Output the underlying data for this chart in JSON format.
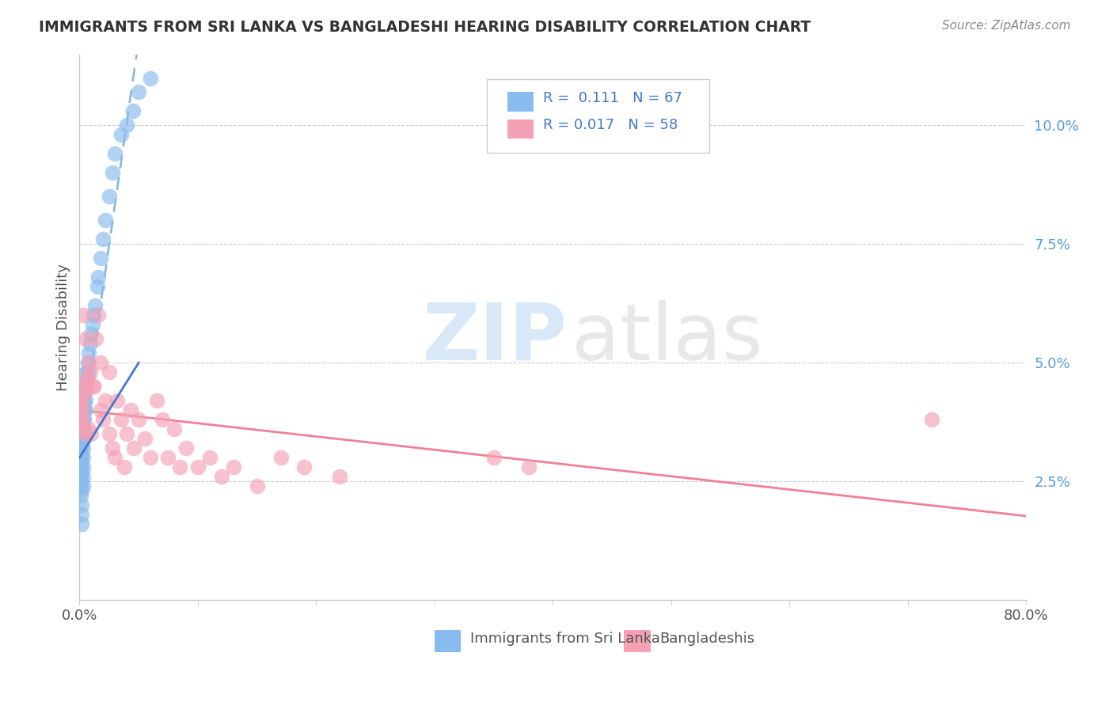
{
  "title": "IMMIGRANTS FROM SRI LANKA VS BANGLADESHI HEARING DISABILITY CORRELATION CHART",
  "source": "Source: ZipAtlas.com",
  "ylabel": "Hearing Disability",
  "ytick_labels": [
    "2.5%",
    "5.0%",
    "7.5%",
    "10.0%"
  ],
  "ytick_values": [
    0.025,
    0.05,
    0.075,
    0.1
  ],
  "xlim": [
    0.0,
    0.8
  ],
  "ylim": [
    0.0,
    0.115
  ],
  "sri_lanka_color": "#88bbee",
  "bangladeshi_color": "#f4a0b5",
  "trendline1_color": "#88bbdd",
  "trendline2_color": "#f08098",
  "background_color": "#ffffff",
  "grid_color": "#cccccc",
  "sri_lanka_x": [
    0.001,
    0.001,
    0.001,
    0.001,
    0.001,
    0.001,
    0.001,
    0.001,
    0.001,
    0.001,
    0.001,
    0.002,
    0.002,
    0.002,
    0.002,
    0.002,
    0.002,
    0.002,
    0.002,
    0.002,
    0.002,
    0.002,
    0.002,
    0.002,
    0.003,
    0.003,
    0.003,
    0.003,
    0.003,
    0.003,
    0.003,
    0.003,
    0.003,
    0.003,
    0.004,
    0.004,
    0.004,
    0.004,
    0.004,
    0.004,
    0.005,
    0.005,
    0.005,
    0.005,
    0.006,
    0.006,
    0.007,
    0.007,
    0.008,
    0.009,
    0.01,
    0.011,
    0.012,
    0.013,
    0.015,
    0.016,
    0.018,
    0.02,
    0.022,
    0.025,
    0.028,
    0.03,
    0.035,
    0.04,
    0.045,
    0.05,
    0.06
  ],
  "sri_lanka_y": [
    0.03,
    0.032,
    0.034,
    0.036,
    0.038,
    0.04,
    0.042,
    0.028,
    0.026,
    0.024,
    0.022,
    0.038,
    0.04,
    0.042,
    0.035,
    0.033,
    0.031,
    0.029,
    0.027,
    0.025,
    0.023,
    0.02,
    0.018,
    0.016,
    0.042,
    0.04,
    0.038,
    0.036,
    0.034,
    0.032,
    0.03,
    0.028,
    0.026,
    0.024,
    0.044,
    0.042,
    0.04,
    0.038,
    0.036,
    0.034,
    0.046,
    0.044,
    0.042,
    0.04,
    0.048,
    0.046,
    0.05,
    0.048,
    0.052,
    0.054,
    0.056,
    0.058,
    0.06,
    0.062,
    0.066,
    0.068,
    0.072,
    0.076,
    0.08,
    0.085,
    0.09,
    0.094,
    0.098,
    0.1,
    0.103,
    0.107,
    0.11
  ],
  "bangladeshi_x": [
    0.001,
    0.001,
    0.001,
    0.002,
    0.002,
    0.003,
    0.003,
    0.004,
    0.004,
    0.005,
    0.005,
    0.006,
    0.007,
    0.008,
    0.009,
    0.01,
    0.012,
    0.014,
    0.016,
    0.018,
    0.02,
    0.022,
    0.025,
    0.028,
    0.03,
    0.032,
    0.035,
    0.038,
    0.04,
    0.043,
    0.046,
    0.05,
    0.055,
    0.06,
    0.065,
    0.07,
    0.075,
    0.08,
    0.085,
    0.09,
    0.1,
    0.11,
    0.12,
    0.13,
    0.15,
    0.17,
    0.19,
    0.22,
    0.35,
    0.38,
    0.72,
    0.003,
    0.005,
    0.008,
    0.012,
    0.018,
    0.025
  ],
  "bangladeshi_y": [
    0.04,
    0.042,
    0.038,
    0.041,
    0.039,
    0.043,
    0.037,
    0.044,
    0.036,
    0.045,
    0.035,
    0.046,
    0.047,
    0.036,
    0.048,
    0.035,
    0.045,
    0.055,
    0.06,
    0.05,
    0.038,
    0.042,
    0.048,
    0.032,
    0.03,
    0.042,
    0.038,
    0.028,
    0.035,
    0.04,
    0.032,
    0.038,
    0.034,
    0.03,
    0.042,
    0.038,
    0.03,
    0.036,
    0.028,
    0.032,
    0.028,
    0.03,
    0.026,
    0.028,
    0.024,
    0.03,
    0.028,
    0.026,
    0.03,
    0.028,
    0.038,
    0.06,
    0.055,
    0.05,
    0.045,
    0.04,
    0.035
  ]
}
